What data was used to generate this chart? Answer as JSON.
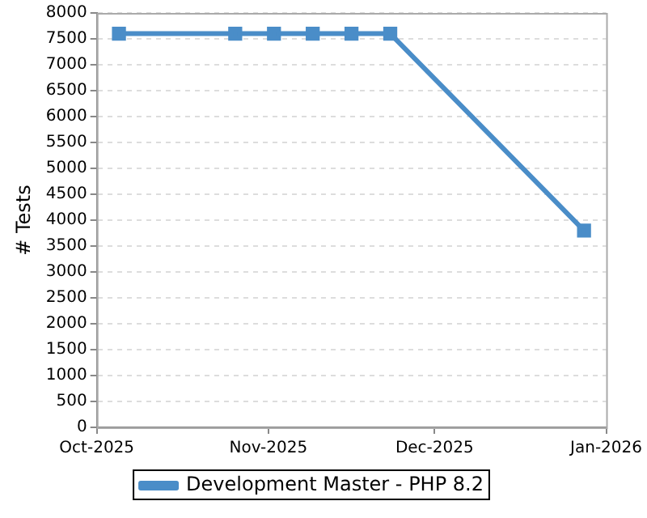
{
  "chart_data": {
    "type": "line",
    "ylabel": "# Tests",
    "x": [
      "2025-10-05",
      "2025-10-26",
      "2025-11-02",
      "2025-11-09",
      "2025-11-16",
      "2025-11-23",
      "2025-12-28"
    ],
    "series": [
      {
        "name": "Development Master - PHP 8.2",
        "color": "#4a8dc8",
        "values": [
          7600,
          7600,
          7600,
          7600,
          7600,
          7600,
          3800
        ]
      }
    ],
    "xlim": [
      "2025-10-01",
      "2026-01-01"
    ],
    "xticks": [
      {
        "value": "2025-10-01",
        "label": "Oct-2025"
      },
      {
        "value": "2025-11-01",
        "label": "Nov-2025"
      },
      {
        "value": "2025-12-01",
        "label": "Dec-2025"
      },
      {
        "value": "2026-01-01",
        "label": "Jan-2026"
      }
    ],
    "ylim": [
      0,
      8000
    ],
    "yticks": [
      0,
      500,
      1000,
      1500,
      2000,
      2500,
      3000,
      3500,
      4000,
      4500,
      5000,
      5500,
      6000,
      6500,
      7000,
      7500,
      8000
    ],
    "grid": "y",
    "legend": "bottom",
    "marker": "square",
    "line_style": "solid"
  }
}
